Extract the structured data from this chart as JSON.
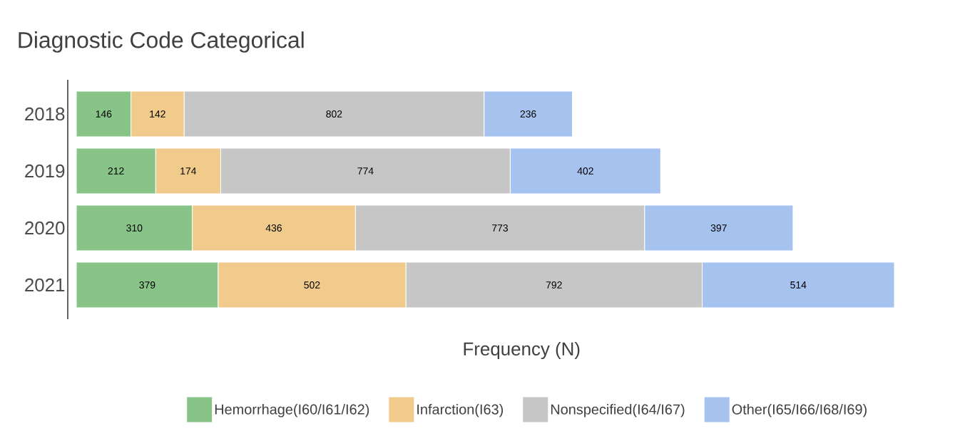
{
  "chart_data": {
    "type": "bar",
    "orientation": "horizontal",
    "stacked": true,
    "title": "Diagnostic Code Categorical",
    "xlabel": "Frequency (N)",
    "categories": [
      "2018",
      "2019",
      "2020",
      "2021"
    ],
    "series": [
      {
        "name": "Hemorrhage(I60/I61/I62)",
        "color": "#88c388",
        "values": [
          146,
          212,
          310,
          379
        ]
      },
      {
        "name": "Infarction(I63)",
        "color": "#f0cb8c",
        "values": [
          142,
          174,
          436,
          502
        ]
      },
      {
        "name": "Nonspecified(I64/I67)",
        "color": "#c6c6c6",
        "values": [
          802,
          774,
          773,
          792
        ]
      },
      {
        "name": "Other(I65/I66/I68/I69)",
        "color": "#a6c3f0",
        "values": [
          236,
          402,
          397,
          514
        ]
      }
    ],
    "data_labels": true,
    "legend": "bottom"
  }
}
